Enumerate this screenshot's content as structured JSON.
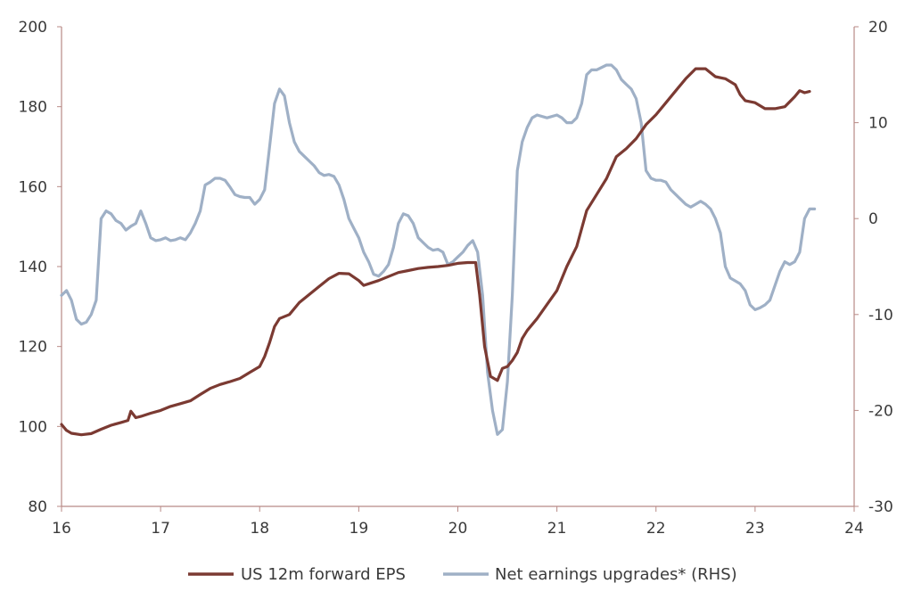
{
  "chart_data": {
    "type": "line",
    "x_ticks": [
      "16",
      "17",
      "18",
      "19",
      "20",
      "21",
      "22",
      "23",
      "24"
    ],
    "y_left_ticks": [
      "80",
      "100",
      "120",
      "140",
      "160",
      "180",
      "200"
    ],
    "y_right_ticks": [
      "-30",
      "-20",
      "-10",
      "0",
      "10",
      "20"
    ],
    "xlim": [
      16,
      24
    ],
    "ylim_left": [
      80,
      200
    ],
    "ylim_right": [
      -30,
      20
    ],
    "grid": false,
    "legend_position": "bottom",
    "series": [
      {
        "name": "US 12m forward EPS",
        "axis": "left",
        "color": "#7b3a32",
        "points": [
          [
            16.0,
            100.5
          ],
          [
            16.05,
            99.0
          ],
          [
            16.1,
            98.3
          ],
          [
            16.2,
            97.9
          ],
          [
            16.3,
            98.2
          ],
          [
            16.4,
            99.3
          ],
          [
            16.5,
            100.3
          ],
          [
            16.6,
            101.0
          ],
          [
            16.67,
            101.5
          ],
          [
            16.7,
            103.8
          ],
          [
            16.75,
            102.2
          ],
          [
            16.8,
            102.5
          ],
          [
            16.9,
            103.3
          ],
          [
            17.0,
            104.0
          ],
          [
            17.1,
            105.0
          ],
          [
            17.2,
            105.7
          ],
          [
            17.3,
            106.4
          ],
          [
            17.4,
            108.0
          ],
          [
            17.5,
            109.5
          ],
          [
            17.6,
            110.5
          ],
          [
            17.7,
            111.2
          ],
          [
            17.8,
            112.0
          ],
          [
            17.9,
            113.5
          ],
          [
            18.0,
            115.0
          ],
          [
            18.05,
            117.5
          ],
          [
            18.1,
            121.0
          ],
          [
            18.15,
            125.0
          ],
          [
            18.2,
            127.0
          ],
          [
            18.3,
            128.0
          ],
          [
            18.4,
            131.0
          ],
          [
            18.5,
            133.0
          ],
          [
            18.6,
            135.0
          ],
          [
            18.7,
            137.0
          ],
          [
            18.8,
            138.3
          ],
          [
            18.9,
            138.2
          ],
          [
            19.0,
            136.5
          ],
          [
            19.05,
            135.3
          ],
          [
            19.1,
            135.7
          ],
          [
            19.2,
            136.5
          ],
          [
            19.3,
            137.5
          ],
          [
            19.4,
            138.5
          ],
          [
            19.5,
            139.0
          ],
          [
            19.6,
            139.5
          ],
          [
            19.7,
            139.8
          ],
          [
            19.8,
            140.0
          ],
          [
            19.9,
            140.3
          ],
          [
            20.0,
            140.8
          ],
          [
            20.1,
            141.0
          ],
          [
            20.18,
            141.0
          ],
          [
            20.22,
            133.0
          ],
          [
            20.27,
            120.0
          ],
          [
            20.33,
            112.5
          ],
          [
            20.4,
            111.5
          ],
          [
            20.45,
            114.5
          ],
          [
            20.5,
            115.0
          ],
          [
            20.55,
            116.5
          ],
          [
            20.6,
            118.5
          ],
          [
            20.65,
            122.0
          ],
          [
            20.7,
            124.0
          ],
          [
            20.8,
            127.0
          ],
          [
            20.9,
            130.5
          ],
          [
            21.0,
            134.0
          ],
          [
            21.1,
            140.0
          ],
          [
            21.2,
            145.0
          ],
          [
            21.3,
            154.0
          ],
          [
            21.4,
            158.0
          ],
          [
            21.5,
            162.0
          ],
          [
            21.6,
            167.5
          ],
          [
            21.7,
            169.5
          ],
          [
            21.8,
            172.0
          ],
          [
            21.9,
            175.5
          ],
          [
            22.0,
            178.0
          ],
          [
            22.1,
            181.0
          ],
          [
            22.2,
            184.0
          ],
          [
            22.3,
            187.0
          ],
          [
            22.4,
            189.5
          ],
          [
            22.5,
            189.5
          ],
          [
            22.6,
            187.5
          ],
          [
            22.7,
            187.0
          ],
          [
            22.8,
            185.5
          ],
          [
            22.85,
            183.0
          ],
          [
            22.9,
            181.5
          ],
          [
            23.0,
            181.0
          ],
          [
            23.1,
            179.5
          ],
          [
            23.2,
            179.5
          ],
          [
            23.3,
            180.0
          ],
          [
            23.4,
            182.5
          ],
          [
            23.45,
            184.0
          ],
          [
            23.5,
            183.5
          ],
          [
            23.55,
            183.8
          ]
        ]
      },
      {
        "name": "Net earnings upgrades* (RHS)",
        "axis": "right",
        "color": "#9fb0c6",
        "points": [
          [
            16.0,
            -8.0
          ],
          [
            16.05,
            -7.5
          ],
          [
            16.1,
            -8.5
          ],
          [
            16.15,
            -10.5
          ],
          [
            16.2,
            -11.0
          ],
          [
            16.25,
            -10.8
          ],
          [
            16.3,
            -10.0
          ],
          [
            16.35,
            -8.5
          ],
          [
            16.4,
            0.0
          ],
          [
            16.45,
            0.8
          ],
          [
            16.5,
            0.5
          ],
          [
            16.55,
            -0.2
          ],
          [
            16.6,
            -0.5
          ],
          [
            16.65,
            -1.2
          ],
          [
            16.7,
            -0.8
          ],
          [
            16.75,
            -0.5
          ],
          [
            16.8,
            0.8
          ],
          [
            16.85,
            -0.5
          ],
          [
            16.9,
            -2.0
          ],
          [
            16.95,
            -2.3
          ],
          [
            17.0,
            -2.2
          ],
          [
            17.05,
            -2.0
          ],
          [
            17.1,
            -2.3
          ],
          [
            17.15,
            -2.2
          ],
          [
            17.2,
            -2.0
          ],
          [
            17.25,
            -2.2
          ],
          [
            17.3,
            -1.5
          ],
          [
            17.35,
            -0.5
          ],
          [
            17.4,
            0.8
          ],
          [
            17.45,
            3.5
          ],
          [
            17.5,
            3.8
          ],
          [
            17.55,
            4.2
          ],
          [
            17.6,
            4.2
          ],
          [
            17.65,
            4.0
          ],
          [
            17.7,
            3.3
          ],
          [
            17.75,
            2.5
          ],
          [
            17.8,
            2.3
          ],
          [
            17.85,
            2.2
          ],
          [
            17.9,
            2.2
          ],
          [
            17.95,
            1.5
          ],
          [
            18.0,
            2.0
          ],
          [
            18.05,
            3.0
          ],
          [
            18.1,
            7.5
          ],
          [
            18.15,
            12.0
          ],
          [
            18.2,
            13.5
          ],
          [
            18.25,
            12.8
          ],
          [
            18.3,
            10.0
          ],
          [
            18.35,
            8.0
          ],
          [
            18.4,
            7.0
          ],
          [
            18.45,
            6.5
          ],
          [
            18.5,
            6.0
          ],
          [
            18.55,
            5.5
          ],
          [
            18.6,
            4.8
          ],
          [
            18.65,
            4.5
          ],
          [
            18.7,
            4.6
          ],
          [
            18.75,
            4.4
          ],
          [
            18.8,
            3.5
          ],
          [
            18.85,
            2.0
          ],
          [
            18.9,
            0.0
          ],
          [
            18.95,
            -1.0
          ],
          [
            19.0,
            -2.0
          ],
          [
            19.05,
            -3.5
          ],
          [
            19.1,
            -4.5
          ],
          [
            19.15,
            -5.8
          ],
          [
            19.2,
            -6.0
          ],
          [
            19.25,
            -5.5
          ],
          [
            19.3,
            -4.8
          ],
          [
            19.35,
            -3.0
          ],
          [
            19.4,
            -0.5
          ],
          [
            19.45,
            0.5
          ],
          [
            19.5,
            0.3
          ],
          [
            19.55,
            -0.5
          ],
          [
            19.6,
            -2.0
          ],
          [
            19.65,
            -2.5
          ],
          [
            19.7,
            -3.0
          ],
          [
            19.75,
            -3.3
          ],
          [
            19.8,
            -3.2
          ],
          [
            19.85,
            -3.5
          ],
          [
            19.9,
            -4.8
          ],
          [
            19.95,
            -4.5
          ],
          [
            20.0,
            -4.0
          ],
          [
            20.05,
            -3.5
          ],
          [
            20.1,
            -2.8
          ],
          [
            20.15,
            -2.3
          ],
          [
            20.2,
            -3.5
          ],
          [
            20.25,
            -8.0
          ],
          [
            20.3,
            -16.0
          ],
          [
            20.35,
            -20.0
          ],
          [
            20.4,
            -22.5
          ],
          [
            20.45,
            -22.0
          ],
          [
            20.5,
            -17.0
          ],
          [
            20.55,
            -8.0
          ],
          [
            20.6,
            5.0
          ],
          [
            20.65,
            8.0
          ],
          [
            20.7,
            9.5
          ],
          [
            20.75,
            10.5
          ],
          [
            20.8,
            10.8
          ],
          [
            20.9,
            10.5
          ],
          [
            21.0,
            10.8
          ],
          [
            21.05,
            10.5
          ],
          [
            21.1,
            10.0
          ],
          [
            21.15,
            10.0
          ],
          [
            21.2,
            10.5
          ],
          [
            21.25,
            12.0
          ],
          [
            21.3,
            15.0
          ],
          [
            21.35,
            15.5
          ],
          [
            21.4,
            15.5
          ],
          [
            21.5,
            16.0
          ],
          [
            21.55,
            16.0
          ],
          [
            21.6,
            15.5
          ],
          [
            21.65,
            14.5
          ],
          [
            21.7,
            14.0
          ],
          [
            21.75,
            13.5
          ],
          [
            21.8,
            12.5
          ],
          [
            21.85,
            10.0
          ],
          [
            21.9,
            5.0
          ],
          [
            21.95,
            4.2
          ],
          [
            22.0,
            4.0
          ],
          [
            22.05,
            4.0
          ],
          [
            22.1,
            3.8
          ],
          [
            22.15,
            3.0
          ],
          [
            22.2,
            2.5
          ],
          [
            22.25,
            2.0
          ],
          [
            22.3,
            1.5
          ],
          [
            22.35,
            1.2
          ],
          [
            22.4,
            1.5
          ],
          [
            22.45,
            1.8
          ],
          [
            22.5,
            1.5
          ],
          [
            22.55,
            1.0
          ],
          [
            22.6,
            0.0
          ],
          [
            22.65,
            -1.5
          ],
          [
            22.7,
            -5.0
          ],
          [
            22.75,
            -6.2
          ],
          [
            22.8,
            -6.5
          ],
          [
            22.85,
            -6.8
          ],
          [
            22.9,
            -7.5
          ],
          [
            22.95,
            -9.0
          ],
          [
            23.0,
            -9.5
          ],
          [
            23.05,
            -9.3
          ],
          [
            23.1,
            -9.0
          ],
          [
            23.15,
            -8.5
          ],
          [
            23.2,
            -7.0
          ],
          [
            23.25,
            -5.5
          ],
          [
            23.3,
            -4.5
          ],
          [
            23.35,
            -4.8
          ],
          [
            23.4,
            -4.5
          ],
          [
            23.45,
            -3.5
          ],
          [
            23.5,
            0.0
          ],
          [
            23.55,
            1.0
          ],
          [
            23.6,
            1.0
          ]
        ]
      }
    ]
  }
}
